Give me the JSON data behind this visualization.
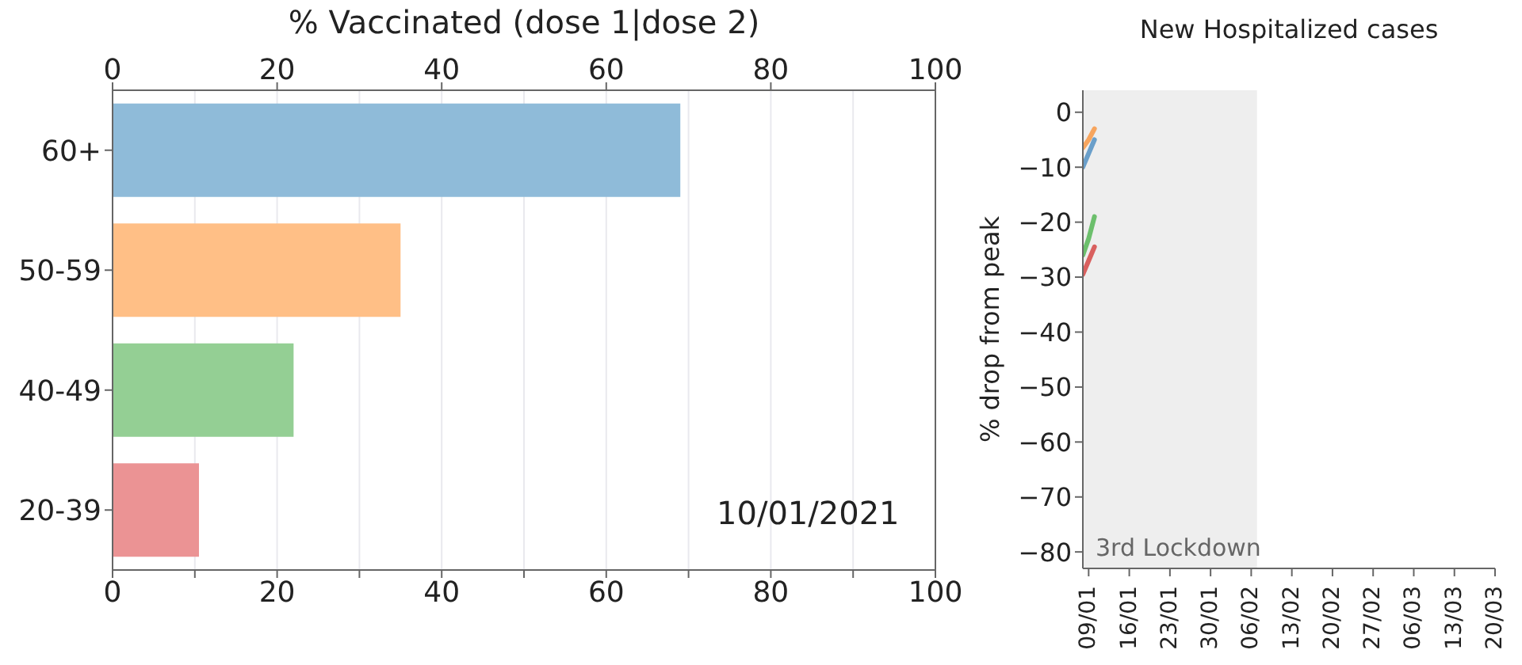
{
  "chart_data": [
    {
      "type": "bar",
      "orientation": "horizontal",
      "title": "% Vaccinated (dose 1|dose 2)",
      "categories": [
        "60+",
        "50-59",
        "40-49",
        "20-39"
      ],
      "values": [
        69,
        35,
        22,
        10.5
      ],
      "colors": [
        "#8fbbd9",
        "#ffbf86",
        "#94cf94",
        "#eb9394"
      ],
      "xlim": [
        0,
        100
      ],
      "xticks": [
        0,
        {
          "value": 10,
          "label": null
        },
        20,
        {
          "value": 30,
          "label": null
        },
        40,
        {
          "value": 50,
          "label": null
        },
        60,
        {
          "value": 70,
          "label": null
        },
        80,
        {
          "value": 90,
          "label": null
        },
        100
      ],
      "x2lim": [
        0,
        100
      ],
      "x2ticks": [
        0,
        20,
        40,
        60,
        80,
        100
      ],
      "grid": "x",
      "annotations": [
        "10/01/2021"
      ]
    },
    {
      "type": "line",
      "title": "New Hospitalized cases",
      "ylabel": "% drop from peak",
      "x": [
        "2021-01-08",
        "2021-01-09",
        "2021-01-10"
      ],
      "series": [
        {
          "color": "#6a9fca",
          "values": [
            -10,
            -7.5,
            -5
          ]
        },
        {
          "color": "#f7a55e",
          "values": [
            -6.5,
            -5,
            -3
          ]
        },
        {
          "color": "#6cbf6c",
          "values": [
            -26,
            -23,
            -19
          ]
        },
        {
          "color": "#d9605f",
          "values": [
            -29.5,
            -27,
            -24.5
          ]
        }
      ],
      "xlim": [
        "2021-01-08",
        "2021-03-20"
      ],
      "xticks": [
        {
          "value": "2021-01-09",
          "label": "09/01"
        },
        {
          "value": "2021-01-16",
          "label": "16/01"
        },
        {
          "value": "2021-01-23",
          "label": "23/01"
        },
        {
          "value": "2021-01-30",
          "label": "30/01"
        },
        {
          "value": "2021-02-06",
          "label": "06/02"
        },
        {
          "value": "2021-02-13",
          "label": "13/02"
        },
        {
          "value": "2021-02-20",
          "label": "20/02"
        },
        {
          "value": "2021-02-27",
          "label": "27/02"
        },
        {
          "value": "2021-03-06",
          "label": "06/03"
        },
        {
          "value": "2021-03-13",
          "label": "13/03"
        },
        {
          "value": "2021-03-20",
          "label": "20/03"
        }
      ],
      "ylim": [
        -83,
        4
      ],
      "yticks": [
        0,
        {
          "value": -10,
          "label": "−10"
        },
        {
          "value": -20,
          "label": "−20"
        },
        {
          "value": -30,
          "label": "−30"
        },
        {
          "value": -40,
          "label": "−40"
        },
        {
          "value": -50,
          "label": "−50"
        },
        {
          "value": -60,
          "label": "−60"
        },
        {
          "value": -70,
          "label": "−70"
        },
        {
          "value": -80,
          "label": "−80"
        }
      ],
      "bands": [
        {
          "axis": "x",
          "from": "2021-01-08",
          "to": "2021-02-07",
          "label": "3rd Lockdown",
          "color": "#eeeeee"
        }
      ]
    }
  ]
}
